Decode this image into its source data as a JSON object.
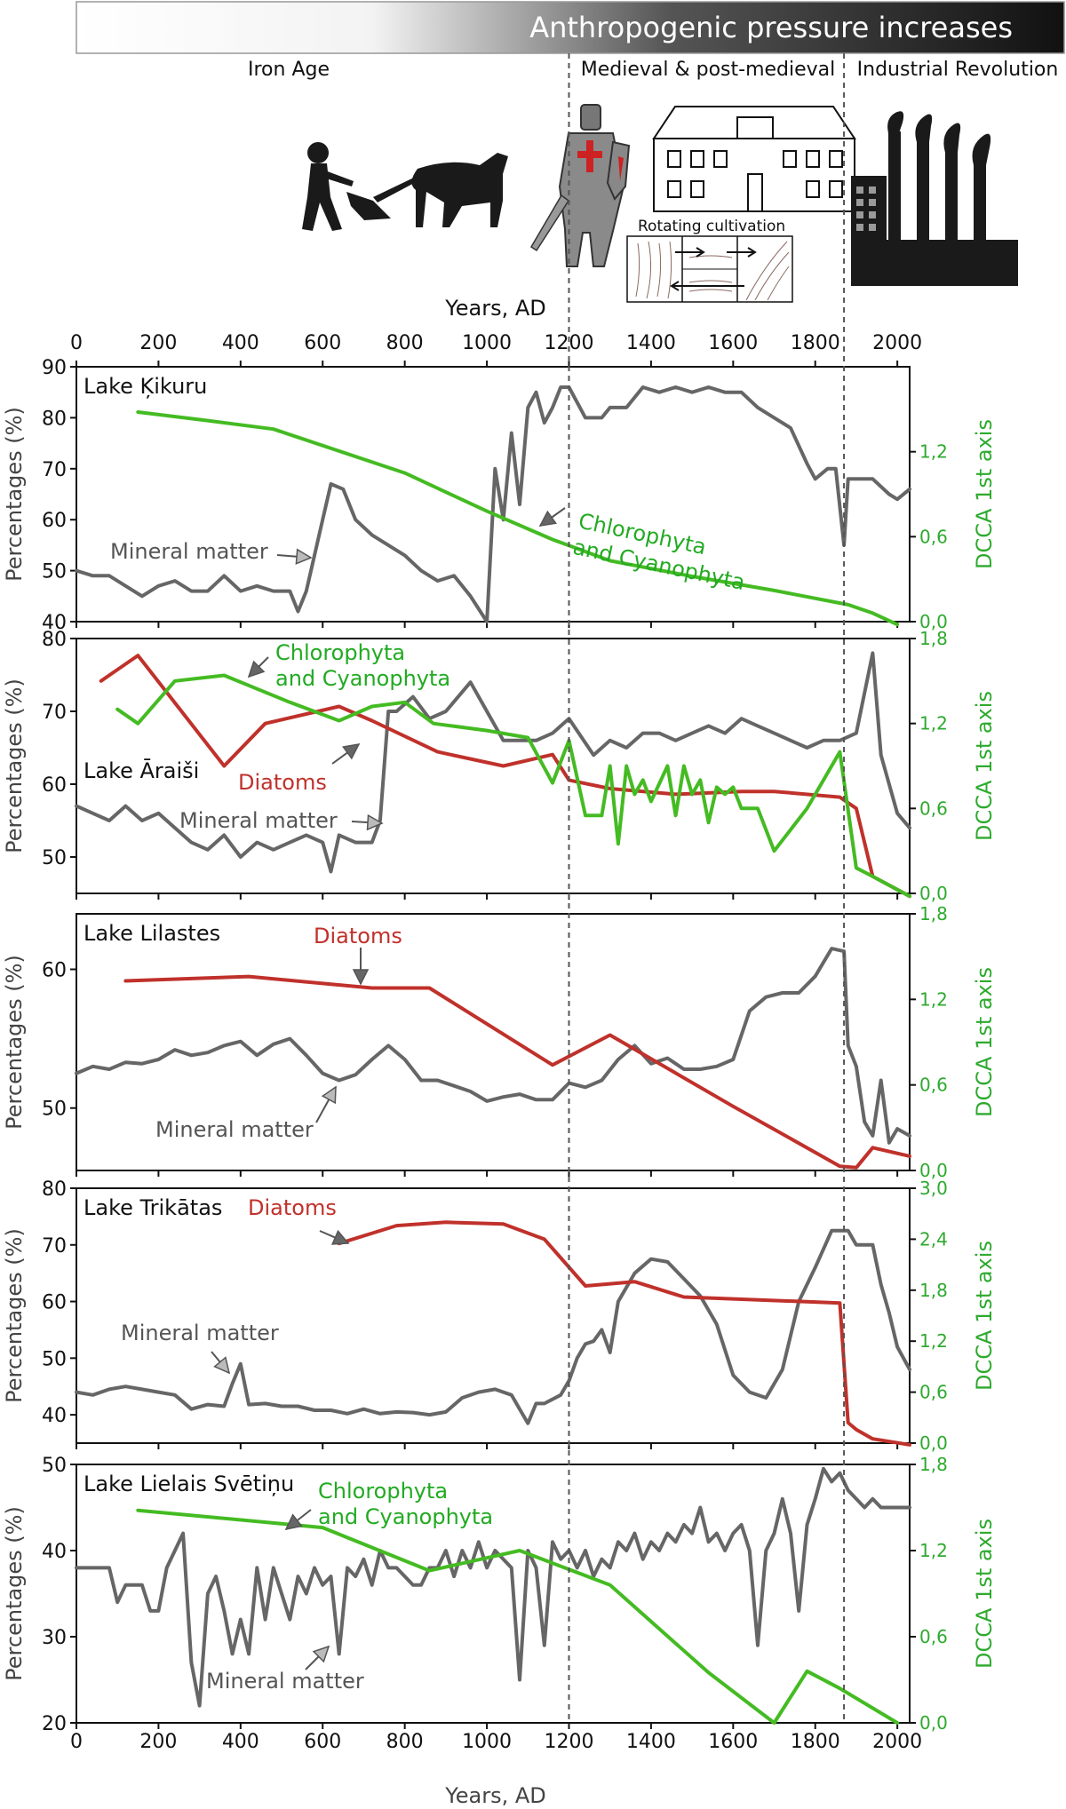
{
  "header": {
    "banner_text": "Anthropogenic pressure increases",
    "periods": [
      "Iron Age",
      "Medieval & post-medieval",
      "Industrial Revolution"
    ],
    "illustration_caption": "Rotating cultivation",
    "top_axis_title": "Years, AD",
    "top_ticks": [
      0,
      200,
      400,
      600,
      800,
      1000,
      1200,
      1400,
      1600,
      1800,
      2000
    ]
  },
  "colors": {
    "mineral": "#666666",
    "chloro": "#44bb22",
    "diatoms": "#c0312b",
    "dcca_axis": "#2eaa2e"
  },
  "labels": {
    "left_axis": "Percentages (%)",
    "right_axis": "DCCA 1st axis",
    "bottom_axis": "Years, AD",
    "mineral": "Mineral matter",
    "chloro_line1": "Chlorophyta",
    "chloro_line2": "and Cyanophyta",
    "diatoms": "Diatoms"
  },
  "chart_data": [
    {
      "type": "line",
      "lake": "Lake Ķikuru",
      "xlim": [
        0,
        2030
      ],
      "ylim_left": [
        40,
        90
      ],
      "left_ticks": [
        40,
        50,
        60,
        70,
        80,
        90
      ],
      "ylim_right": [
        0,
        1.8
      ],
      "right_ticks": [
        "0,0",
        "0,6",
        "1,2"
      ],
      "right_tick_values": [
        0,
        0.6,
        1.2
      ],
      "series": [
        {
          "role": "mineral",
          "axis": "left",
          "x": [
            0,
            40,
            80,
            120,
            160,
            200,
            240,
            280,
            320,
            360,
            400,
            440,
            480,
            520,
            540,
            560,
            580,
            600,
            620,
            650,
            680,
            720,
            760,
            800,
            840,
            880,
            920,
            960,
            1000,
            1020,
            1040,
            1060,
            1080,
            1100,
            1120,
            1140,
            1160,
            1180,
            1200,
            1240,
            1280,
            1300,
            1340,
            1380,
            1420,
            1460,
            1500,
            1540,
            1580,
            1620,
            1660,
            1700,
            1740,
            1780,
            1800,
            1830,
            1850,
            1870,
            1880,
            1900,
            1940,
            1980,
            2000,
            2030
          ],
          "y": [
            50,
            49,
            49,
            47,
            45,
            47,
            48,
            46,
            46,
            49,
            46,
            47,
            46,
            46,
            42,
            46,
            53,
            60,
            67,
            66,
            60,
            57,
            55,
            53,
            50,
            48,
            49,
            45,
            40,
            70,
            60,
            77,
            63,
            82,
            85,
            79,
            82,
            86,
            86,
            80,
            80,
            82,
            82,
            86,
            85,
            86,
            85,
            86,
            85,
            85,
            82,
            80,
            78,
            71,
            68,
            70,
            70,
            55,
            68,
            68,
            68,
            65,
            64,
            66
          ]
        },
        {
          "role": "chloro",
          "axis": "right",
          "x": [
            150,
            320,
            480,
            800,
            1000,
            1160,
            1300,
            1500,
            1700,
            1880,
            1940,
            2000
          ],
          "y": [
            1.48,
            1.42,
            1.36,
            1.05,
            0.78,
            0.58,
            0.43,
            0.32,
            0.22,
            0.12,
            0.06,
            -0.02
          ]
        }
      ]
    },
    {
      "type": "line",
      "lake": "Lake Āraiši",
      "xlim": [
        0,
        2030
      ],
      "ylim_left": [
        45,
        80
      ],
      "left_ticks": [
        50,
        60,
        70,
        80
      ],
      "ylim_right": [
        0,
        1.8
      ],
      "right_ticks": [
        "0,0",
        "0,6",
        "1,2",
        "1,8"
      ],
      "right_tick_values": [
        0,
        0.6,
        1.2,
        1.8
      ],
      "series": [
        {
          "role": "mineral",
          "axis": "left",
          "x": [
            0,
            40,
            80,
            120,
            160,
            200,
            240,
            280,
            320,
            360,
            400,
            440,
            480,
            520,
            560,
            600,
            620,
            640,
            680,
            720,
            740,
            760,
            780,
            820,
            860,
            900,
            960,
            1000,
            1040,
            1080,
            1120,
            1160,
            1200,
            1260,
            1300,
            1340,
            1380,
            1420,
            1460,
            1500,
            1540,
            1580,
            1620,
            1660,
            1700,
            1740,
            1780,
            1820,
            1860,
            1900,
            1940,
            1960,
            1980,
            2000,
            2030
          ],
          "y": [
            57,
            56,
            55,
            57,
            55,
            56,
            54,
            52,
            51,
            53,
            50,
            52,
            51,
            52,
            53,
            52,
            48,
            53,
            52,
            52,
            55,
            70,
            70,
            72,
            69,
            70,
            74,
            70,
            66,
            66,
            66,
            67,
            69,
            64,
            66,
            65,
            67,
            67,
            66,
            67,
            68,
            67,
            69,
            68,
            67,
            66,
            65,
            66,
            66,
            67,
            78,
            64,
            60,
            56,
            54
          ]
        },
        {
          "role": "diatoms",
          "axis": "right",
          "x": [
            60,
            150,
            360,
            460,
            640,
            720,
            880,
            1040,
            1160,
            1200,
            1300,
            1460,
            1620,
            1700,
            1860,
            1900,
            1940,
            2030
          ],
          "y": [
            1.5,
            1.68,
            0.9,
            1.2,
            1.32,
            1.22,
            1.0,
            0.9,
            0.98,
            0.8,
            0.74,
            0.7,
            0.72,
            0.72,
            0.68,
            0.6,
            0.12,
            -0.02
          ]
        },
        {
          "role": "chloro",
          "axis": "right",
          "x": [
            100,
            150,
            240,
            360,
            520,
            640,
            720,
            800,
            870,
            1000,
            1100,
            1160,
            1200,
            1240,
            1280,
            1300,
            1320,
            1340,
            1360,
            1380,
            1400,
            1440,
            1460,
            1480,
            1500,
            1520,
            1540,
            1560,
            1580,
            1600,
            1620,
            1660,
            1700,
            1780,
            1860,
            1900,
            1940,
            2030
          ],
          "y": [
            1.3,
            1.2,
            1.5,
            1.54,
            1.35,
            1.22,
            1.32,
            1.35,
            1.2,
            1.15,
            1.1,
            0.78,
            1.08,
            0.55,
            0.55,
            0.9,
            0.35,
            0.9,
            0.7,
            0.8,
            0.65,
            0.9,
            0.55,
            0.9,
            0.7,
            0.8,
            0.5,
            0.75,
            0.7,
            0.75,
            0.6,
            0.6,
            0.3,
            0.6,
            1.0,
            0.18,
            0.12,
            -0.02
          ]
        }
      ]
    },
    {
      "type": "line",
      "lake": "Lake Lilastes",
      "xlim": [
        0,
        2030
      ],
      "ylim_left": [
        45.5,
        64
      ],
      "left_ticks": [
        50,
        60
      ],
      "ylim_right": [
        0,
        1.8
      ],
      "right_ticks": [
        "0,0",
        "0,6",
        "1,2",
        "1,8"
      ],
      "right_tick_values": [
        0,
        0.6,
        1.2,
        1.8
      ],
      "series": [
        {
          "role": "mineral",
          "axis": "left",
          "x": [
            0,
            40,
            80,
            120,
            160,
            200,
            240,
            280,
            320,
            360,
            400,
            440,
            480,
            520,
            560,
            600,
            640,
            680,
            720,
            760,
            800,
            840,
            880,
            920,
            960,
            1000,
            1040,
            1080,
            1120,
            1160,
            1200,
            1240,
            1280,
            1320,
            1360,
            1400,
            1440,
            1480,
            1520,
            1560,
            1600,
            1640,
            1680,
            1720,
            1760,
            1800,
            1840,
            1870,
            1880,
            1900,
            1920,
            1940,
            1960,
            1980,
            2000,
            2030
          ],
          "y": [
            52.5,
            53,
            52.8,
            53.3,
            53.2,
            53.5,
            54.2,
            53.8,
            54,
            54.5,
            54.8,
            53.8,
            54.6,
            55,
            53.8,
            52.5,
            52,
            52.4,
            53.5,
            54.5,
            53.5,
            52,
            52,
            51.6,
            51.2,
            50.5,
            50.8,
            51,
            50.6,
            50.6,
            51.8,
            51.5,
            52,
            53.5,
            54.5,
            53.2,
            53.6,
            52.8,
            52.8,
            53,
            53.5,
            57,
            58,
            58.3,
            58.3,
            59.5,
            61.5,
            61.3,
            54.5,
            53,
            49,
            48,
            52,
            47.5,
            48.5,
            48
          ]
        },
        {
          "role": "diatoms",
          "axis": "right",
          "x": [
            120,
            420,
            720,
            860,
            1160,
            1300,
            1600,
            1860,
            1900,
            1940,
            2030
          ],
          "y": [
            1.33,
            1.36,
            1.28,
            1.28,
            0.74,
            0.95,
            0.45,
            0.03,
            0.02,
            0.16,
            0.1
          ]
        }
      ]
    },
    {
      "type": "line",
      "lake": "Lake Trikātas",
      "xlim": [
        0,
        2030
      ],
      "ylim_left": [
        35,
        80
      ],
      "left_ticks": [
        40,
        50,
        60,
        70,
        80
      ],
      "ylim_right": [
        0,
        3.0
      ],
      "right_ticks": [
        "0,0",
        "0,6",
        "1,2",
        "1,8",
        "2,4",
        "3,0"
      ],
      "right_tick_values": [
        0,
        0.6,
        1.2,
        1.8,
        2.4,
        3.0
      ],
      "series": [
        {
          "role": "mineral",
          "axis": "left",
          "x": [
            0,
            40,
            80,
            120,
            160,
            200,
            240,
            280,
            320,
            360,
            380,
            400,
            420,
            460,
            500,
            540,
            580,
            620,
            660,
            700,
            740,
            780,
            820,
            860,
            900,
            940,
            980,
            1020,
            1060,
            1080,
            1100,
            1120,
            1140,
            1180,
            1200,
            1220,
            1240,
            1260,
            1280,
            1300,
            1320,
            1360,
            1400,
            1440,
            1480,
            1520,
            1560,
            1600,
            1640,
            1680,
            1720,
            1760,
            1800,
            1840,
            1880,
            1900,
            1920,
            1940,
            1960,
            1980,
            2000,
            2030
          ],
          "y": [
            44,
            43.5,
            44.5,
            45,
            44.5,
            44,
            43.5,
            41,
            41.8,
            41.5,
            45.5,
            49,
            41.8,
            42,
            41.5,
            41.5,
            40.8,
            40.8,
            40.2,
            41,
            40.2,
            40.5,
            40.4,
            40,
            40.5,
            43,
            44,
            44.5,
            43.5,
            41,
            38.5,
            42,
            42,
            43.5,
            46,
            50,
            52.5,
            53,
            55,
            51,
            60,
            65,
            67.5,
            67,
            64,
            61,
            56,
            47,
            44,
            43,
            48,
            60,
            66,
            72.5,
            72.5,
            70,
            70,
            70,
            63,
            58,
            52,
            48
          ]
        },
        {
          "role": "diatoms",
          "axis": "right",
          "x": [
            640,
            780,
            900,
            1040,
            1140,
            1240,
            1360,
            1480,
            1860,
            1880,
            1900,
            1940,
            2030
          ],
          "y": [
            2.35,
            2.56,
            2.6,
            2.58,
            2.4,
            1.85,
            1.9,
            1.72,
            1.65,
            0.24,
            0.16,
            0.05,
            -0.02
          ]
        }
      ]
    },
    {
      "type": "line",
      "lake": "Lake Lielais Svētiņu",
      "xlim": [
        0,
        2030
      ],
      "ylim_left": [
        20,
        50
      ],
      "left_ticks": [
        20,
        30,
        40,
        50
      ],
      "ylim_right": [
        0,
        1.8
      ],
      "right_ticks": [
        "0,0",
        "0,6",
        "1,2",
        "1,8"
      ],
      "right_tick_values": [
        0,
        0.6,
        1.2,
        1.8
      ],
      "series": [
        {
          "role": "mineral",
          "axis": "left",
          "x": [
            0,
            40,
            80,
            100,
            120,
            160,
            180,
            200,
            220,
            240,
            260,
            280,
            300,
            320,
            340,
            360,
            380,
            400,
            420,
            440,
            460,
            480,
            500,
            520,
            540,
            560,
            580,
            600,
            620,
            640,
            660,
            680,
            700,
            720,
            740,
            760,
            780,
            800,
            820,
            840,
            860,
            880,
            900,
            920,
            940,
            960,
            980,
            1000,
            1020,
            1040,
            1060,
            1080,
            1100,
            1120,
            1140,
            1160,
            1180,
            1200,
            1220,
            1240,
            1260,
            1280,
            1300,
            1320,
            1340,
            1360,
            1380,
            1400,
            1420,
            1440,
            1460,
            1480,
            1500,
            1520,
            1540,
            1560,
            1580,
            1600,
            1620,
            1640,
            1660,
            1680,
            1700,
            1720,
            1740,
            1760,
            1780,
            1800,
            1820,
            1840,
            1860,
            1880,
            1900,
            1920,
            1940,
            1960,
            1980,
            2000,
            2030
          ],
          "y": [
            38,
            38,
            38,
            34,
            36,
            36,
            33,
            33,
            38,
            40,
            42,
            27,
            22,
            35,
            37,
            33,
            28,
            32,
            28,
            38,
            32,
            38,
            35,
            32,
            37,
            35,
            38,
            36,
            37,
            28,
            38,
            37,
            39,
            36,
            40,
            38,
            38,
            37,
            36,
            36,
            38,
            38,
            40,
            37,
            40,
            38,
            41,
            38,
            40,
            39,
            38,
            25,
            40,
            38,
            29,
            41,
            39,
            40,
            38,
            40,
            37,
            39,
            38,
            41,
            40,
            42,
            39,
            41,
            40,
            42,
            41,
            43,
            42,
            45,
            41,
            42,
            40,
            42,
            43,
            40,
            29,
            40,
            42,
            46,
            42,
            33,
            43,
            46,
            49.5,
            48,
            49,
            47,
            46,
            45,
            46,
            45,
            45,
            45,
            45
          ]
        },
        {
          "role": "chloro",
          "axis": "right",
          "x": [
            150,
            600,
            860,
            1080,
            1300,
            1540,
            1700,
            1780,
            1860,
            2000
          ],
          "y": [
            1.48,
            1.36,
            1.06,
            1.2,
            0.96,
            0.35,
            0.0,
            0.36,
            0.24,
            0.0
          ]
        }
      ]
    }
  ]
}
